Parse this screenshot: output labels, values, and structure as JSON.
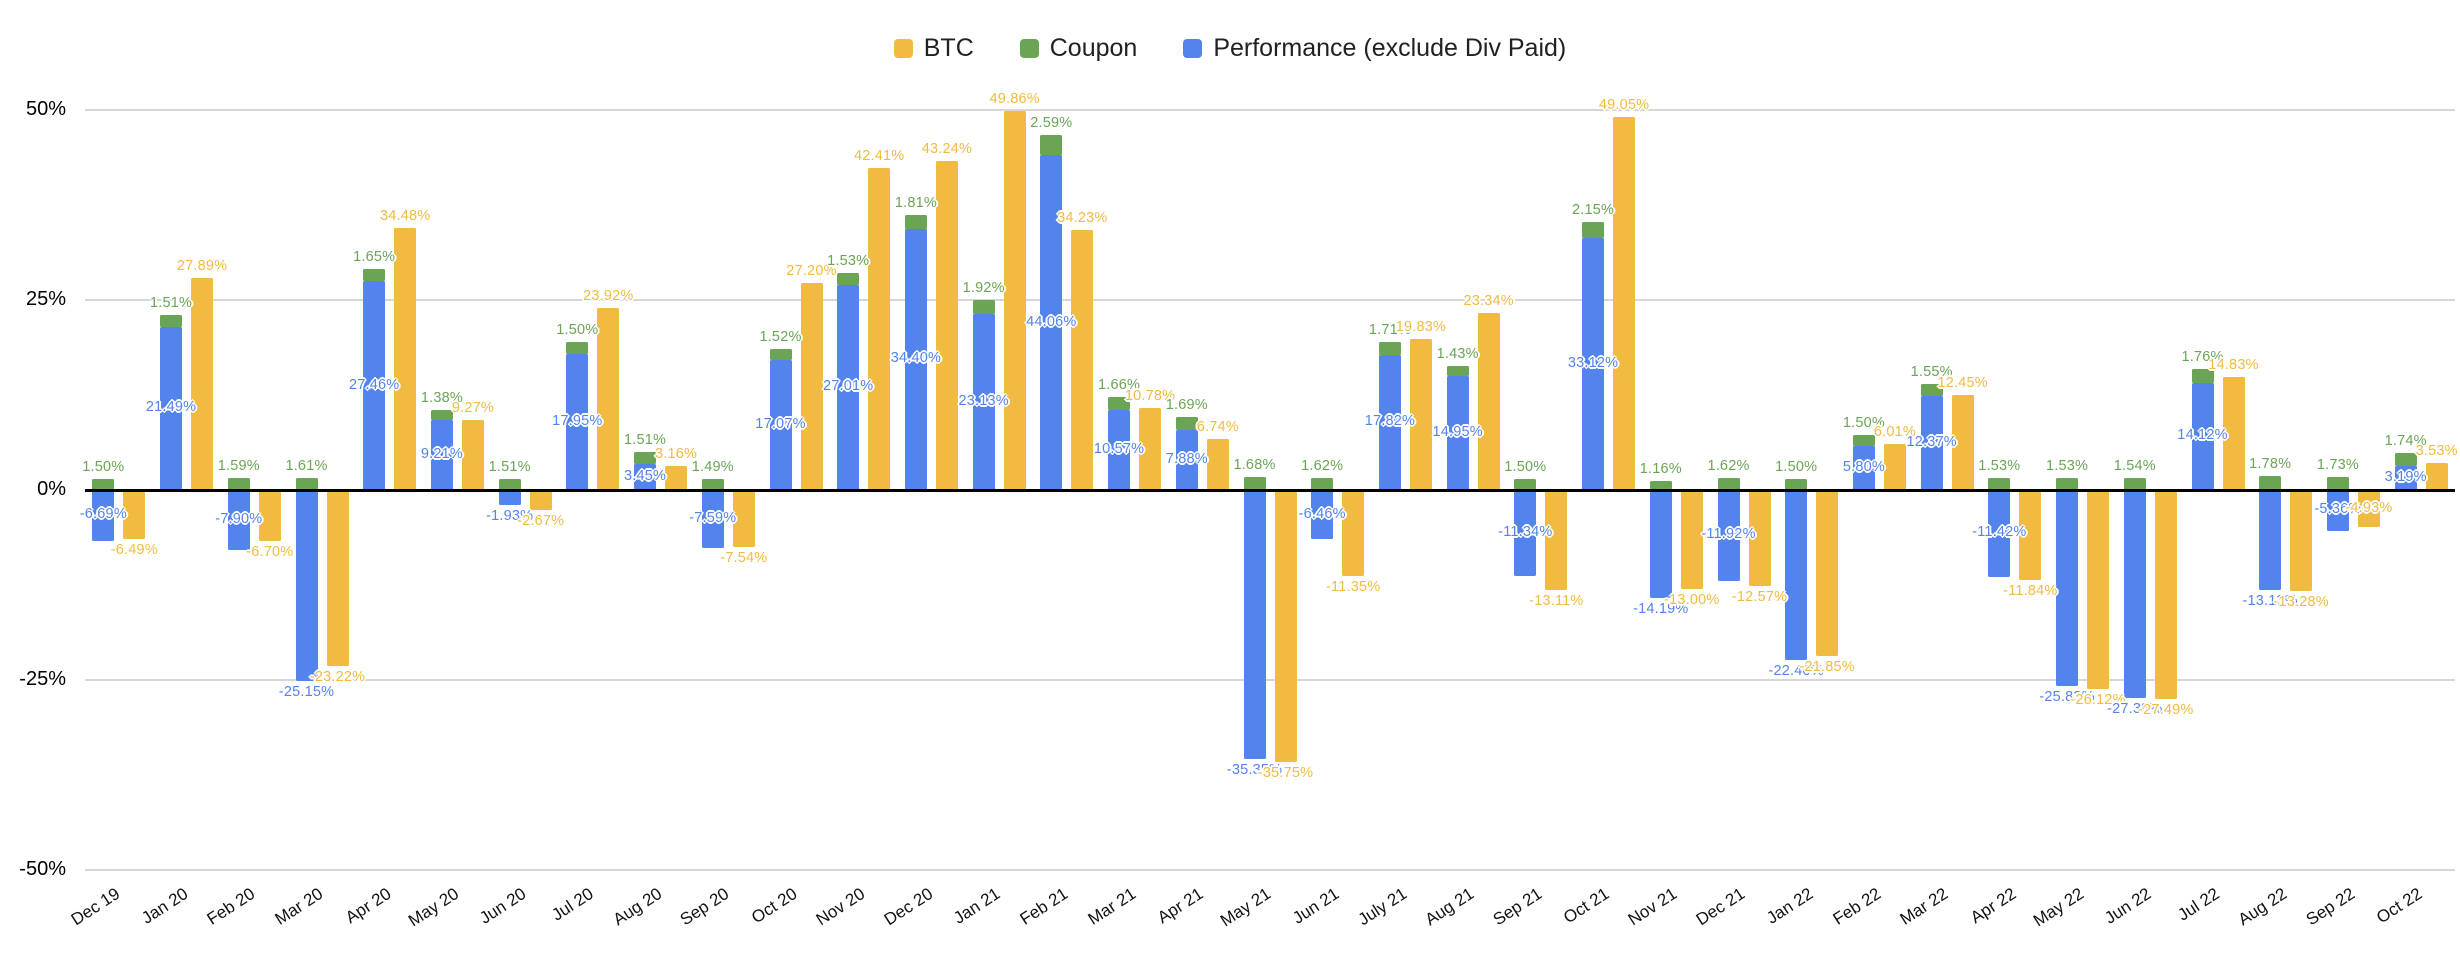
{
  "legend": {
    "position": "top",
    "items": [
      {
        "label": "BTC",
        "color": "#F0BB40"
      },
      {
        "label": "Coupon",
        "color": "#6AA455"
      },
      {
        "label": "Performance (exclude Div Paid)",
        "color": "#5383EC"
      }
    ]
  },
  "axes": {
    "y_ticks": [
      {
        "label": "50%",
        "value": 50
      },
      {
        "label": "25%",
        "value": 25
      },
      {
        "label": "0%",
        "value": 0
      },
      {
        "label": "-25%",
        "value": -25
      },
      {
        "label": "-50%",
        "value": -50
      }
    ]
  },
  "chart_data": {
    "type": "bar",
    "title": "",
    "stacking": "Coupon stacked on top of Performance (exclude Div Paid); BTC plotted as separate adjacent column",
    "value_format": "0.00%",
    "ylim": [
      -50,
      50
    ],
    "grid": true,
    "legend_position": "top-center",
    "categories": [
      "Dec 19",
      "Jan 20",
      "Feb 20",
      "Mar 20",
      "Apr 20",
      "May 20",
      "Jun 20",
      "Jul 20",
      "Aug 20",
      "Sep 20",
      "Oct 20",
      "Nov 20",
      "Dec 20",
      "Jan 21",
      "Feb 21",
      "Mar 21",
      "Apr 21",
      "May 21",
      "Jun 21",
      "July 21",
      "Aug 21",
      "Sep 21",
      "Oct 21",
      "Nov 21",
      "Dec 21",
      "Jan 22",
      "Feb 22",
      "Mar 22",
      "Apr 22",
      "May 22",
      "Jun 22",
      "Jul 22",
      "Aug 22",
      "Sep 22",
      "Oct 22"
    ],
    "series": [
      {
        "name": "BTC",
        "color": "#F0BB40",
        "values": [
          -6.49,
          27.89,
          -6.7,
          -23.22,
          34.48,
          9.27,
          -2.67,
          23.92,
          3.16,
          -7.54,
          27.2,
          42.41,
          43.24,
          49.86,
          34.23,
          10.78,
          6.74,
          -35.75,
          -11.35,
          19.83,
          23.34,
          -13.11,
          49.05,
          -13.0,
          -12.57,
          -21.85,
          6.01,
          12.45,
          -11.84,
          -26.12,
          -27.49,
          14.83,
          -13.28,
          -4.93,
          3.53
        ]
      },
      {
        "name": "Coupon",
        "color": "#6AA455",
        "values": [
          1.5,
          1.51,
          1.59,
          1.61,
          1.65,
          1.38,
          1.51,
          1.5,
          1.51,
          1.49,
          1.52,
          1.53,
          1.81,
          1.92,
          2.59,
          1.66,
          1.69,
          1.68,
          1.62,
          1.71,
          1.43,
          1.5,
          2.15,
          1.16,
          1.62,
          1.5,
          1.5,
          1.55,
          1.53,
          1.53,
          1.54,
          1.76,
          1.78,
          1.73,
          1.74
        ]
      },
      {
        "name": "Performance (exclude Div Paid)",
        "color": "#5383EC",
        "values": [
          -6.69,
          21.49,
          -7.9,
          -25.15,
          27.46,
          9.21,
          -1.93,
          17.95,
          3.45,
          -7.59,
          17.07,
          27.01,
          34.4,
          23.13,
          44.06,
          10.57,
          7.88,
          -35.35,
          -6.46,
          17.82,
          14.95,
          -11.34,
          33.12,
          -14.19,
          -11.92,
          -22.4,
          5.8,
          12.37,
          -11.42,
          -25.83,
          -27.38,
          14.12,
          -13.13,
          -5.36,
          3.19
        ]
      }
    ]
  }
}
